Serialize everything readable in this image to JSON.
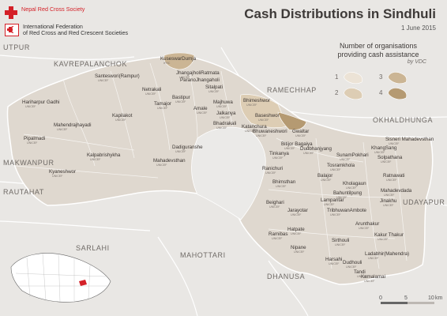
{
  "title": "Cash Distributions in Sindhuli",
  "date": "1 June 2015",
  "organisations": [
    {
      "name": "Nepal Red Cross Society",
      "icon": "red-cross-icon"
    },
    {
      "name": "International Federation\nof Red Cross and Red Crescent Societies",
      "icon": "ifrc-emblem-icon"
    }
  ],
  "legend": {
    "title": "Number of organisations\nproviding cash assistance",
    "subtitle": "by VDC",
    "classes": [
      {
        "label": "1",
        "color": "#ece3d6"
      },
      {
        "label": "2",
        "color": "#ddcdb4"
      },
      {
        "label": "3",
        "color": "#cbb594"
      },
      {
        "label": "4",
        "color": "#b59a72"
      }
    ]
  },
  "colors": {
    "district_fill": "#dfd8cf",
    "outside_fill": "#e9e7e4",
    "border": "#ffffff",
    "vdc_border": "#faf8f5",
    "cross_red": "#d42027"
  },
  "scale": {
    "ticks": [
      "0",
      "5",
      "10"
    ],
    "unit": "km"
  },
  "neighbours": [
    "UTPUR",
    "KAVREPALANCHOK",
    "RAMECHHAP",
    "OKHALDHUNGA",
    "MAKWANPUR",
    "UDAYAPUR",
    "RAUTAHAT",
    "SARLAHI",
    "MAHOTTARI",
    "DHANUSA"
  ],
  "vdcs": [
    {
      "name": "KuseswarDumja",
      "org": "IFRC"
    },
    {
      "name": "JhangajholiRatmata",
      "org": "UNICEF"
    },
    {
      "name": "Santeswori(Rampur)",
      "org": "UNICEF"
    },
    {
      "name": "ParanoJhangaholi",
      "org": ""
    },
    {
      "name": "Sitalpati",
      "org": "UNICEF"
    },
    {
      "name": "Netrakali",
      "org": "UNICEF"
    },
    {
      "name": "Bastipur",
      "org": "UNICEF"
    },
    {
      "name": "Tamajor",
      "org": "UNICEF"
    },
    {
      "name": "Amale",
      "org": "UNICEF"
    },
    {
      "name": "Majhuwa",
      "org": "UNICEF"
    },
    {
      "name": "Bhimeshwor",
      "org": "UNICEF"
    },
    {
      "name": "Hariharpur Gadhi",
      "org": "UNICEF"
    },
    {
      "name": "Kapilakot",
      "org": "UNICEF"
    },
    {
      "name": "Jalkanya",
      "org": "UNICEF"
    },
    {
      "name": "Baseshwor",
      "org": "UNICEF"
    },
    {
      "name": "Mahendrajhayadi",
      "org": "UNICEF"
    },
    {
      "name": "Bhadrakali",
      "org": "UNICEF"
    },
    {
      "name": "Katanchura",
      "org": "UNICEF"
    },
    {
      "name": "Bhuwaneshwori",
      "org": "UNICEF"
    },
    {
      "name": "Gwaltar",
      "org": "UNICEF"
    },
    {
      "name": "Sisneri Mahadevsthan",
      "org": "UNICEF"
    },
    {
      "name": "Pipalmadi",
      "org": "UNICEF"
    },
    {
      "name": "Bitijor Bagaiya",
      "org": "UNICEF"
    },
    {
      "name": "Dudbhanjyang",
      "org": "UNICEF"
    },
    {
      "name": "KhangSang",
      "org": "UNICEF"
    },
    {
      "name": "Dadiguranshe",
      "org": "UNICEF"
    },
    {
      "name": "Tinkanya",
      "org": "UNICEF"
    },
    {
      "name": "SunamPokhari",
      "org": "UNICEF"
    },
    {
      "name": "Solpathana",
      "org": "UNICEF"
    },
    {
      "name": "Kalpabrishykha",
      "org": "UNICEF"
    },
    {
      "name": "Mahadevsthan",
      "org": "UNICEF"
    },
    {
      "name": "Ranichuri",
      "org": "UNICEF"
    },
    {
      "name": "Tosramkhola",
      "org": "UNICEF"
    },
    {
      "name": "Kyaneshwor",
      "org": "UNICEF"
    },
    {
      "name": "Balajor",
      "org": "UNICEF"
    },
    {
      "name": "Ratnawati",
      "org": "UNICEF"
    },
    {
      "name": "Bhimsthan",
      "org": "UNICEF"
    },
    {
      "name": "Kholagaun",
      "org": "UNICEF"
    },
    {
      "name": "Bahuntilpung",
      "org": "UNICEF"
    },
    {
      "name": "Mahadevdada",
      "org": "UNICEF"
    },
    {
      "name": "Lampantar",
      "org": "UNICEF"
    },
    {
      "name": "Beighari",
      "org": "UNICEF"
    },
    {
      "name": "Jinakhu",
      "org": "UNICEF"
    },
    {
      "name": "Jarayotar",
      "org": "UNICEF"
    },
    {
      "name": "TribhuwanAmbote",
      "org": "UNICEF"
    },
    {
      "name": "Arunthakur",
      "org": "UNICEF"
    },
    {
      "name": "Hatpate",
      "org": "UNICEF"
    },
    {
      "name": "Kakur Thakur",
      "org": "UNICEF"
    },
    {
      "name": "Ramibas",
      "org": "UNICEF"
    },
    {
      "name": "Sirthouli",
      "org": "UNICEF"
    },
    {
      "name": "Nipane",
      "org": "UNICEF"
    },
    {
      "name": "Ladabhir(Mahendra)",
      "org": "UNICEF"
    },
    {
      "name": "Harsahi",
      "org": "UNICEF"
    },
    {
      "name": "Dudhouli",
      "org": "UNICEF"
    },
    {
      "name": "Tandi",
      "org": "UNICEF"
    },
    {
      "name": "Kamalamai",
      "org": "UNICEF"
    }
  ]
}
